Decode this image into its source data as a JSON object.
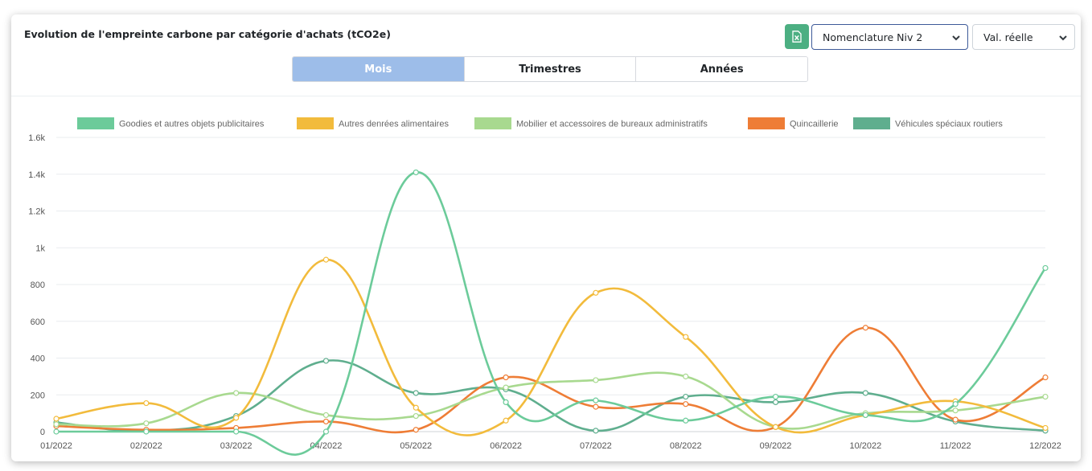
{
  "header": {
    "title": "Evolution de l'empreinte carbone par catégorie d'achats (tCO2e)",
    "export_icon": "excel-file-icon",
    "level_select": "Nomenclature Niv 2",
    "value_select": "Val. réelle"
  },
  "tabs": [
    {
      "label": "Mois",
      "active": true
    },
    {
      "label": "Trimestres",
      "active": false
    },
    {
      "label": "Années",
      "active": false
    }
  ],
  "colors": {
    "accent": "#4caf82",
    "active_tab": "#9dbde9"
  },
  "chart_data": {
    "type": "line",
    "smooth": true,
    "categories": [
      "01/2022",
      "02/2022",
      "03/2022",
      "04/2022",
      "05/2022",
      "06/2022",
      "07/2022",
      "08/2022",
      "09/2022",
      "10/2022",
      "11/2022",
      "12/2022"
    ],
    "ylim": [
      0,
      1600
    ],
    "yticks": [
      0,
      200,
      400,
      600,
      800,
      1000,
      1200,
      1400,
      1600
    ],
    "ytick_labels": [
      "0",
      "200",
      "400",
      "600",
      "800",
      "1k",
      "1.2k",
      "1.4k",
      "1.6k"
    ],
    "grid": true,
    "legend_position": "top",
    "series": [
      {
        "name": "Goodies et autres objets publicitaires",
        "color": "#6ccb9a",
        "values": [
          0,
          0,
          0,
          0,
          1410,
          160,
          170,
          60,
          190,
          90,
          150,
          890
        ]
      },
      {
        "name": "Autres denrées alimentaires",
        "color": "#f2bb3c",
        "values": [
          70,
          155,
          75,
          935,
          130,
          60,
          755,
          515,
          25,
          90,
          165,
          20
        ]
      },
      {
        "name": "Mobilier et accessoires de bureaux administratifs",
        "color": "#a8d98f",
        "values": [
          40,
          45,
          210,
          90,
          85,
          240,
          280,
          300,
          25,
          100,
          115,
          190
        ]
      },
      {
        "name": "Quincaillerie",
        "color": "#ee7d36",
        "values": [
          30,
          10,
          20,
          55,
          10,
          295,
          135,
          150,
          25,
          565,
          65,
          295
        ]
      },
      {
        "name": "Véhicules spéciaux routiers",
        "color": "#5fae8e",
        "values": [
          50,
          5,
          85,
          385,
          210,
          230,
          5,
          190,
          160,
          210,
          55,
          5
        ]
      }
    ]
  }
}
